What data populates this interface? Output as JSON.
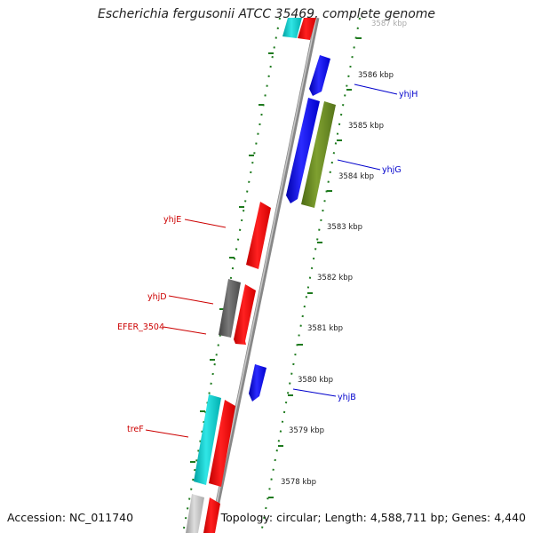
{
  "title": "Escherichia fergusonii ATCC 35469, complete genome",
  "accession": "Accession: NC_011740",
  "summary": "Topology: circular; Length: 4,588,711 bp; Genes: 4,440",
  "scale_ticks": [
    "3587 kbp",
    "3586 kbp",
    "3585 kbp",
    "3584 kbp",
    "3583 kbp",
    "3582 kbp",
    "3581 kbp",
    "3580 kbp",
    "3579 kbp",
    "3578 kbp"
  ],
  "gene_labels": {
    "yhjH": "yhjH",
    "yhjG": "yhjG",
    "yhjE": "yhjE",
    "yhjD": "yhjD",
    "EFER_3504": "EFER_3504",
    "yhjB": "yhjB",
    "treF": "treF"
  },
  "colors": {
    "forward_cds": "#ff0000",
    "reverse_cds": "#0000ff",
    "cyan_feature": "#00cccc",
    "olive_feature": "#6b8e23",
    "gray_feature": "#606060",
    "light_gray_feature": "#bbbbbb",
    "backbone": "#999999",
    "tick_dots": "#1e7a1e"
  }
}
